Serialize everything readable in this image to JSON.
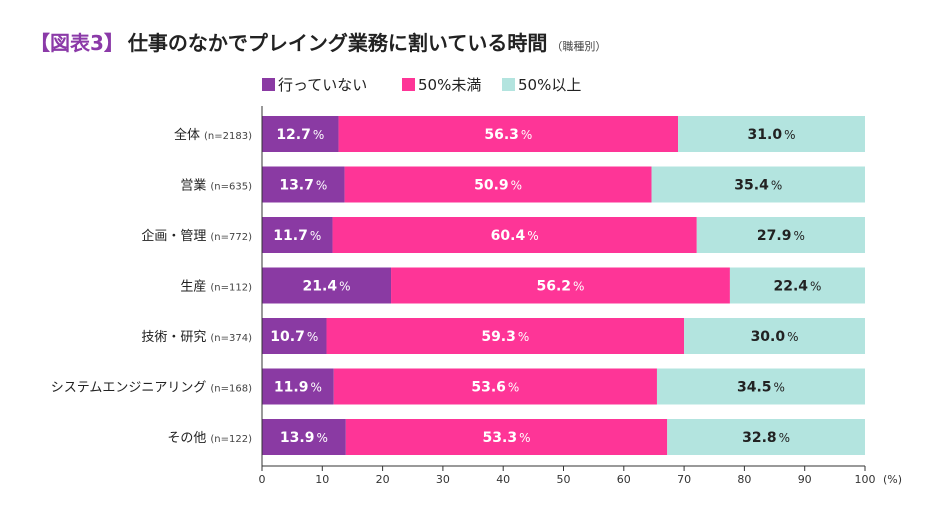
{
  "title": {
    "tag": "【図表3】",
    "main": "仕事のなかでプレイング業務に割いている時間",
    "sub": "（職種別）"
  },
  "colors": {
    "series": [
      "#8a3aa3",
      "#fe3597",
      "#b3e4df"
    ],
    "label_text": [
      "#ffffff",
      "#ffffff",
      "#222222"
    ],
    "axis": "#333333"
  },
  "chart_data": {
    "type": "bar",
    "orientation": "horizontal",
    "stacked": true,
    "categories": [
      "全体",
      "営業",
      "企画・管理",
      "生産",
      "技術・研究",
      "システムエンジニアリング",
      "その他"
    ],
    "sample_sizes": [
      "(n=2183)",
      "(n=635)",
      "(n=772)",
      "(n=112)",
      "(n=374)",
      "(n=168)",
      "(n=122)"
    ],
    "series": [
      {
        "name": "行っていない",
        "values": [
          12.7,
          13.7,
          11.7,
          21.4,
          10.7,
          11.9,
          13.9
        ]
      },
      {
        "name": "50%未満",
        "values": [
          56.3,
          50.9,
          60.4,
          56.2,
          59.3,
          53.6,
          53.3
        ]
      },
      {
        "name": "50%以上",
        "values": [
          31.0,
          35.4,
          27.9,
          22.4,
          30.0,
          34.5,
          32.8
        ]
      }
    ],
    "xlim": [
      0,
      100
    ],
    "xticks": [
      0,
      10,
      20,
      30,
      40,
      50,
      60,
      70,
      80,
      90,
      100
    ],
    "xunit": "(%)",
    "value_suffix": "%",
    "legend_position": "top"
  }
}
